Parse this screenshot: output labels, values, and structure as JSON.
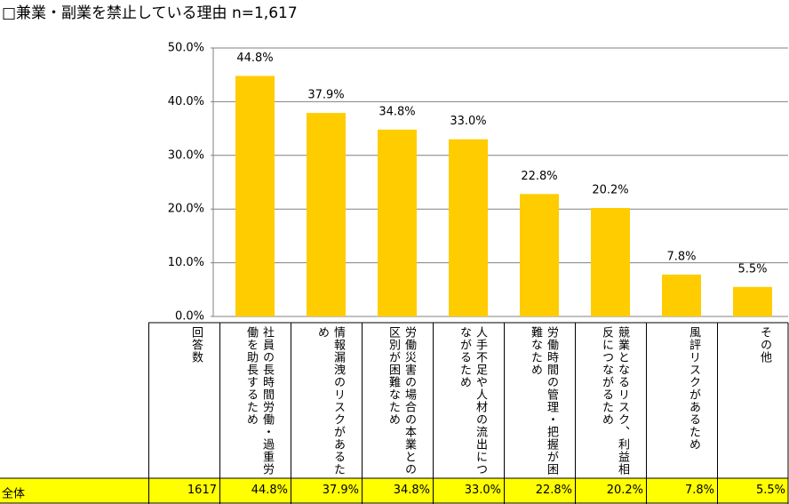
{
  "chart_data": {
    "type": "bar",
    "title": "□兼業・副業を禁止している理由 n=1,617",
    "categories": [
      "社員の長時間労働・過重労働を助長するため",
      "情報漏洩のリスクがあるため",
      "労働災害の場合の本業との区別が困難なため",
      "人手不足や人材の流出につながるため",
      "労働時間の管理・把握が困難なため",
      "競業となるリスク、利益相反につながるため",
      "風評リスクがあるため",
      "その他"
    ],
    "values": [
      44.8,
      37.9,
      34.8,
      33.0,
      22.8,
      20.2,
      7.8,
      5.5
    ],
    "value_labels": [
      "44.8%",
      "37.9%",
      "34.8%",
      "33.0%",
      "22.8%",
      "20.2%",
      "7.8%",
      "5.5%"
    ],
    "color": "#ffcc00",
    "ylim": [
      0,
      50
    ],
    "yticks": [
      {
        "value": 0,
        "label": "0.0%"
      },
      {
        "value": 10,
        "label": "10.0%"
      },
      {
        "value": 20,
        "label": "20.0%"
      },
      {
        "value": 30,
        "label": "30.0%"
      },
      {
        "value": 40,
        "label": "40.0%"
      },
      {
        "value": 50,
        "label": "50.0%"
      }
    ],
    "grid": true
  },
  "table": {
    "count_header": "回答数",
    "row_label": "全体",
    "count": 1617,
    "row_color": "#ffff00"
  }
}
